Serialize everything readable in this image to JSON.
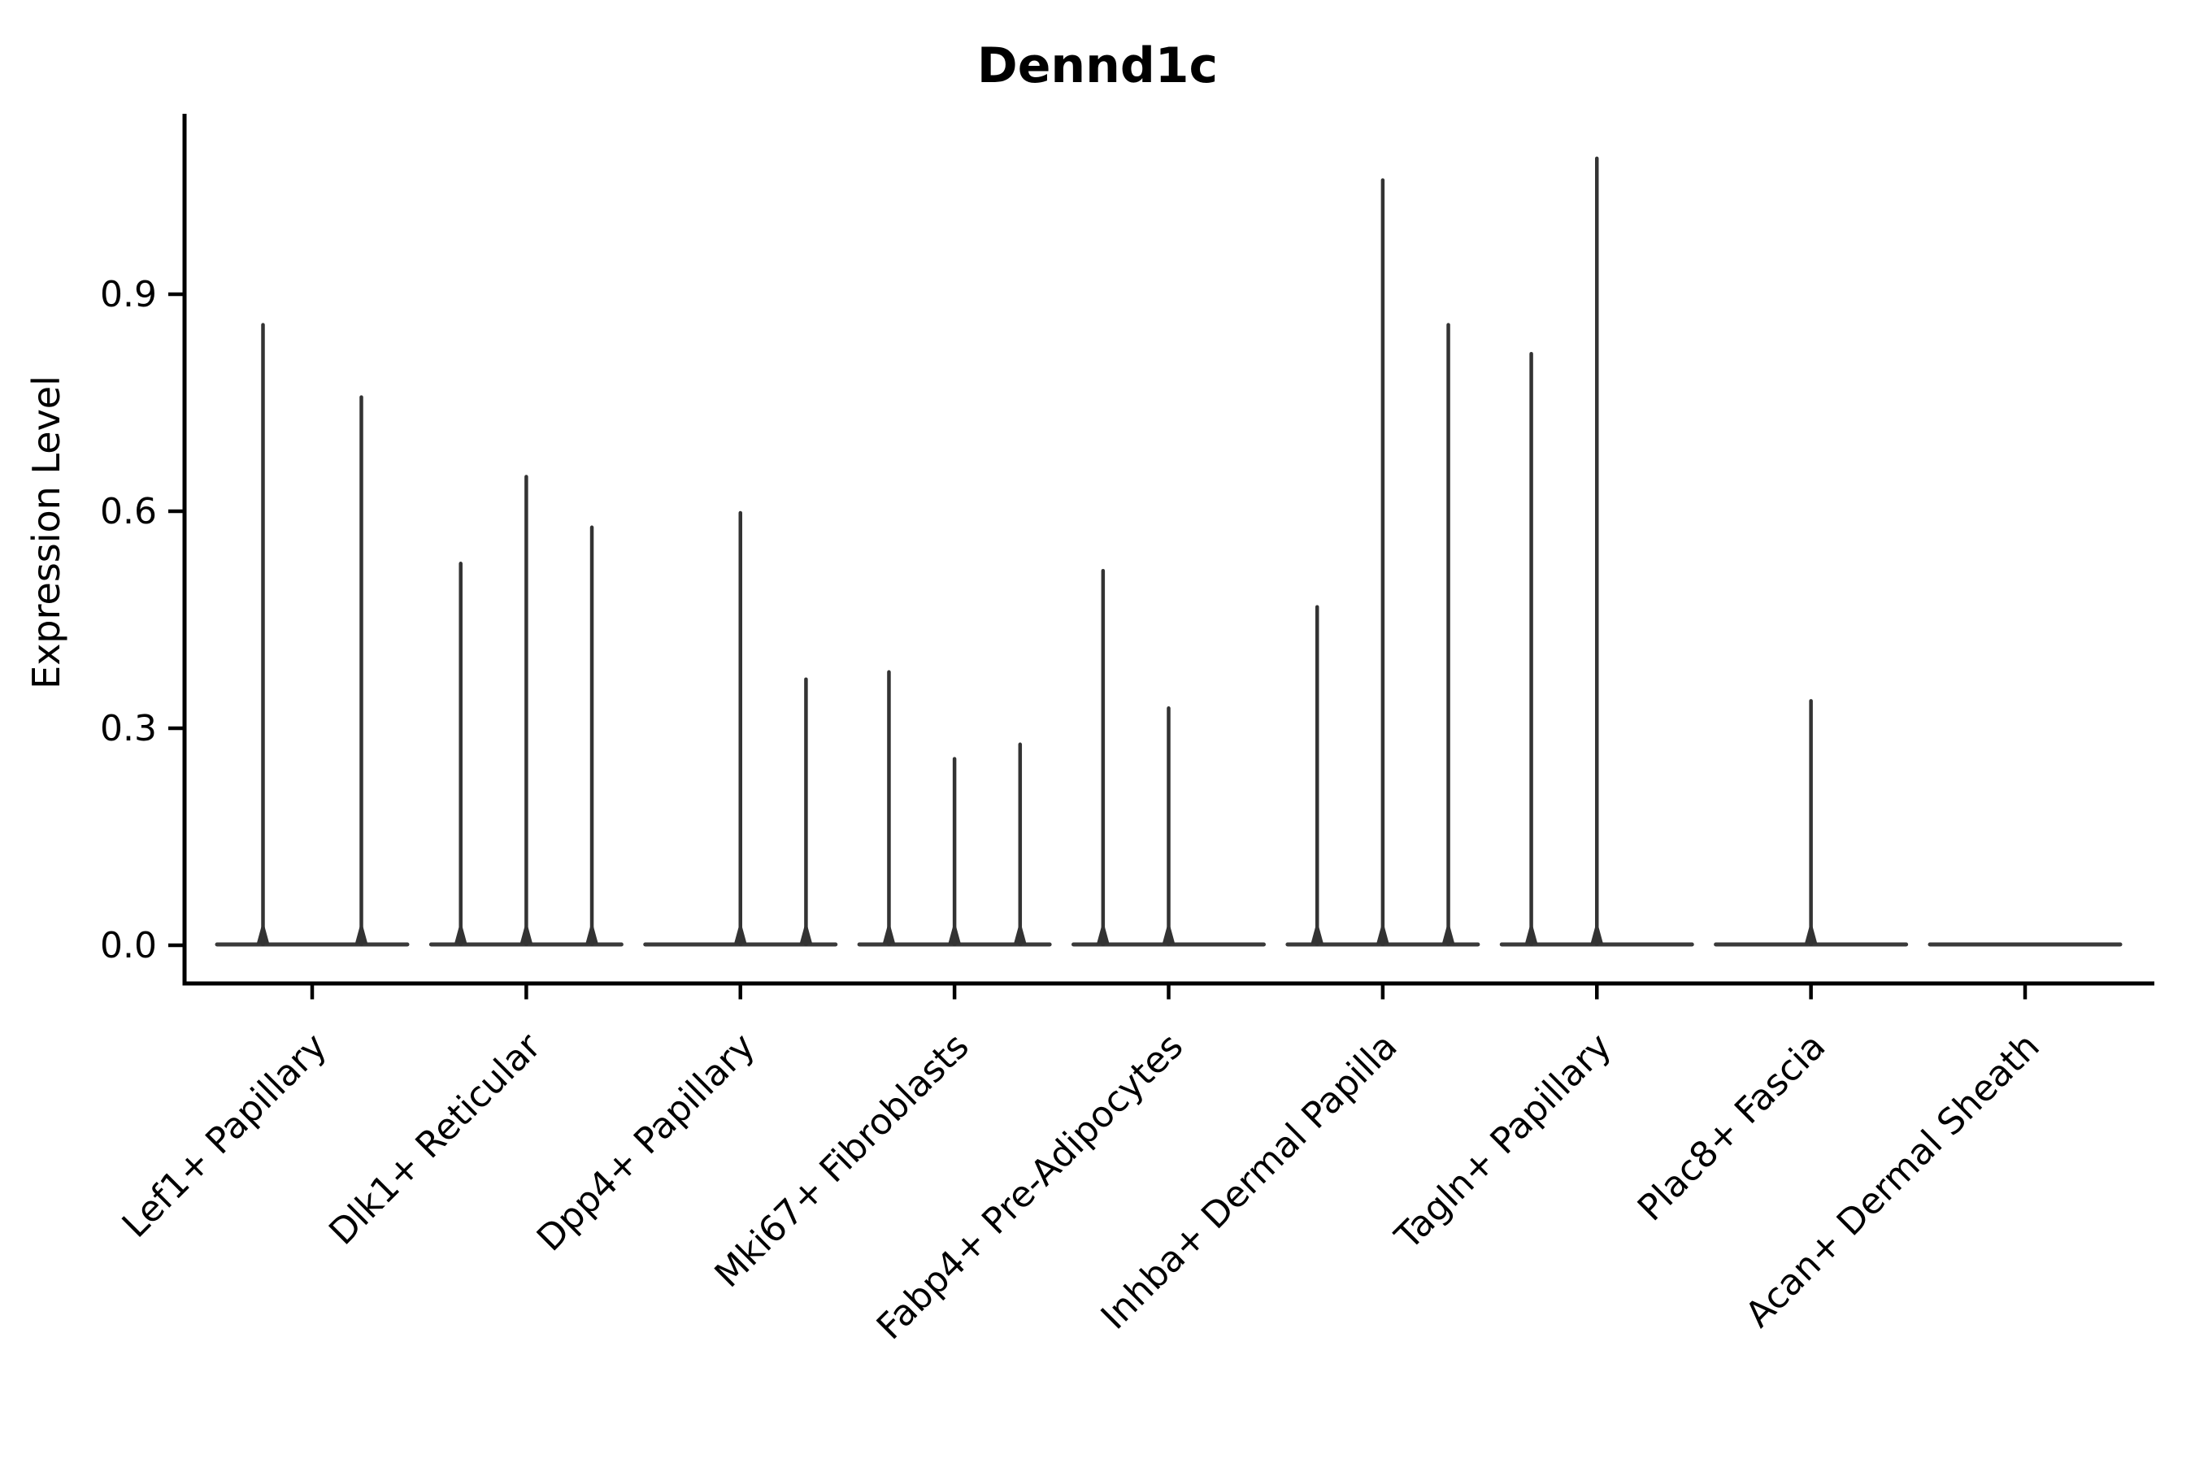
{
  "figure": {
    "background": "#ffffff"
  },
  "chart_data": {
    "type": "violin",
    "title": "Dennd1c",
    "xlabel": "",
    "ylabel": "Expression Level",
    "yticks": [
      0.0,
      0.3,
      0.6,
      0.9
    ],
    "ytick_labels": [
      "0.0",
      "0.3",
      "0.6",
      "0.9"
    ],
    "ylim": [
      -0.053,
      1.149
    ],
    "grid": false,
    "legend": "none",
    "description": "Violin plot of Dennd1c expression; most cells at 0 so each violin collapses to a flat base with a thin spike up to the max expression. Each category contains 2-3 sub-violins; null = fully flat violin (no expressing cells).",
    "categories": [
      "Lef1+ Papillary",
      "Dlk1+ Reticular",
      "Dpp4+ Papillary",
      "Mki67+ Fibroblasts",
      "Fabp4+ Pre-Adipocytes",
      "Inhba+ Dermal Papilla",
      "Tagln+ Papillary",
      "Plac8+ Fascia",
      "Acan+ Dermal Sheath"
    ],
    "groups": [
      {
        "label": "Lef1+ Papillary",
        "violin_max_values": [
          0.86,
          0.76
        ]
      },
      {
        "label": "Dlk1+ Reticular",
        "violin_max_values": [
          0.53,
          0.65,
          0.58
        ]
      },
      {
        "label": "Dpp4+ Papillary",
        "violin_max_values": [
          null,
          0.6,
          0.37
        ]
      },
      {
        "label": "Mki67+ Fibroblasts",
        "violin_max_values": [
          0.38,
          0.26,
          0.28
        ]
      },
      {
        "label": "Fabp4+ Pre-Adipocytes",
        "violin_max_values": [
          0.52,
          0.33,
          null
        ]
      },
      {
        "label": "Inhba+ Dermal Papilla",
        "violin_max_values": [
          0.47,
          1.06,
          0.86
        ]
      },
      {
        "label": "Tagln+ Papillary",
        "violin_max_values": [
          0.82,
          1.09,
          null
        ]
      },
      {
        "label": "Plac8+ Fascia",
        "violin_max_values": [
          null,
          0.34,
          null
        ]
      },
      {
        "label": "Acan+ Dermal Sheath",
        "violin_max_values": [
          null,
          null,
          null
        ]
      }
    ],
    "colors": {
      "violin": "#333333",
      "baseline": "#3a3a3a",
      "axis": "#000000",
      "text": "#000000"
    }
  }
}
